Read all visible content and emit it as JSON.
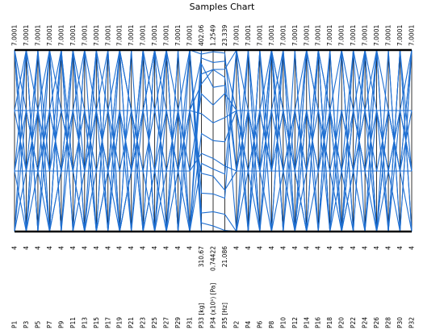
{
  "chart_data": {
    "type": "parallel-coordinates",
    "title": "Samples Chart",
    "axes": [
      {
        "label": "P1",
        "max": "7.0001",
        "min": "4"
      },
      {
        "label": "P3",
        "max": "7.0001",
        "min": "4"
      },
      {
        "label": "P5",
        "max": "7.0001",
        "min": "4"
      },
      {
        "label": "P7",
        "max": "7.0001",
        "min": "4"
      },
      {
        "label": "P9",
        "max": "7.0001",
        "min": "4"
      },
      {
        "label": "P11",
        "max": "7.0001",
        "min": "4"
      },
      {
        "label": "P13",
        "max": "7.0001",
        "min": "4"
      },
      {
        "label": "P15",
        "max": "7.0001",
        "min": "4"
      },
      {
        "label": "P17",
        "max": "7.0001",
        "min": "4"
      },
      {
        "label": "P19",
        "max": "7.0001",
        "min": "4"
      },
      {
        "label": "P21",
        "max": "7.0001",
        "min": "4"
      },
      {
        "label": "P23",
        "max": "7.0001",
        "min": "4"
      },
      {
        "label": "P25",
        "max": "7.0001",
        "min": "4"
      },
      {
        "label": "P27",
        "max": "7.0001",
        "min": "4"
      },
      {
        "label": "P29",
        "max": "7.0001",
        "min": "4"
      },
      {
        "label": "P31",
        "max": "7.0001",
        "min": "4"
      },
      {
        "label": "P33 [kg]",
        "max": "402.06",
        "min": "310.67"
      },
      {
        "label": "P34 (x10¹) [Pa]",
        "max": "1.2549",
        "min": "0.74422"
      },
      {
        "label": "P35 [Hz]",
        "max": "23.339",
        "min": "21.086"
      },
      {
        "label": "P2",
        "max": "7.0001",
        "min": "4"
      },
      {
        "label": "P4",
        "max": "7.0001",
        "min": "4"
      },
      {
        "label": "P6",
        "max": "7.0001",
        "min": "4"
      },
      {
        "label": "P8",
        "max": "7.0001",
        "min": "4"
      },
      {
        "label": "P10",
        "max": "7.0001",
        "min": "4"
      },
      {
        "label": "P12",
        "max": "7.0001",
        "min": "4"
      },
      {
        "label": "P14",
        "max": "7.0001",
        "min": "4"
      },
      {
        "label": "P16",
        "max": "7.0001",
        "min": "4"
      },
      {
        "label": "P18",
        "max": "7.0001",
        "min": "4"
      },
      {
        "label": "P20",
        "max": "7.0001",
        "min": "4"
      },
      {
        "label": "P22",
        "max": "7.0001",
        "min": "4"
      },
      {
        "label": "P24",
        "max": "7.0001",
        "min": "4"
      },
      {
        "label": "P26",
        "max": "7.0001",
        "min": "4"
      },
      {
        "label": "P28",
        "max": "7.0001",
        "min": "4"
      },
      {
        "label": "P30",
        "max": "7.0001",
        "min": "4"
      },
      {
        "label": "P32",
        "max": "7.0001",
        "min": "4"
      }
    ],
    "samples": [
      [
        7,
        4,
        7,
        4,
        7,
        4,
        7,
        4,
        7,
        4,
        7,
        4,
        7,
        4,
        7,
        4,
        402.06,
        1.2549,
        23.339,
        7,
        4,
        7,
        4,
        7,
        4,
        7,
        4,
        7,
        4,
        7,
        4,
        7,
        4,
        7,
        4
      ],
      [
        4,
        7,
        4,
        7,
        4,
        7,
        4,
        7,
        4,
        7,
        4,
        7,
        4,
        7,
        4,
        7,
        310.67,
        0.74422,
        21.086,
        4,
        7,
        4,
        7,
        4,
        7,
        4,
        7,
        4,
        7,
        4,
        7,
        4,
        7,
        4,
        7
      ],
      [
        6,
        5,
        6,
        5,
        6,
        5,
        6,
        5,
        6,
        5,
        6,
        5,
        6,
        5,
        6,
        5,
        380,
        1.1,
        22.8,
        6,
        5,
        6,
        5,
        6,
        5,
        6,
        5,
        6,
        5,
        6,
        5,
        6,
        5,
        6,
        5
      ],
      [
        5,
        6,
        5,
        6,
        5,
        6,
        5,
        6,
        5,
        6,
        5,
        6,
        5,
        6,
        5,
        6,
        340,
        0.9,
        21.6,
        5,
        6,
        5,
        6,
        5,
        6,
        5,
        6,
        5,
        6,
        5,
        6,
        5,
        6,
        5,
        6
      ],
      [
        7,
        7,
        4,
        4,
        7,
        7,
        4,
        4,
        7,
        7,
        4,
        4,
        7,
        7,
        4,
        4,
        390,
        1.2,
        23.1,
        7,
        7,
        4,
        4,
        7,
        7,
        4,
        4,
        7,
        7,
        4,
        4,
        7,
        7,
        4,
        4
      ],
      [
        4,
        4,
        7,
        7,
        4,
        4,
        7,
        7,
        4,
        4,
        7,
        7,
        4,
        4,
        7,
        7,
        320,
        0.8,
        21.3,
        4,
        4,
        7,
        7,
        4,
        4,
        7,
        7,
        4,
        4,
        7,
        7,
        4,
        4,
        7,
        7
      ],
      [
        6,
        6,
        6,
        6,
        6,
        6,
        6,
        6,
        6,
        6,
        6,
        6,
        6,
        6,
        6,
        6,
        370,
        1.05,
        22.5,
        6,
        6,
        6,
        6,
        6,
        6,
        6,
        6,
        6,
        6,
        6,
        6,
        6,
        6,
        6,
        6
      ],
      [
        5,
        5,
        5,
        5,
        5,
        5,
        5,
        5,
        5,
        5,
        5,
        5,
        5,
        5,
        5,
        5,
        350,
        0.95,
        21.9,
        5,
        5,
        5,
        5,
        5,
        5,
        5,
        5,
        5,
        5,
        5,
        5,
        5,
        5,
        5,
        5
      ],
      [
        7,
        6,
        5,
        4,
        5,
        6,
        7,
        6,
        5,
        4,
        5,
        6,
        7,
        6,
        5,
        4,
        395,
        1.15,
        22.9,
        4,
        5,
        6,
        7,
        6,
        5,
        4,
        5,
        6,
        7,
        6,
        5,
        4,
        5,
        6,
        7
      ],
      [
        4,
        5,
        6,
        7,
        6,
        5,
        4,
        5,
        6,
        7,
        6,
        5,
        4,
        5,
        6,
        7,
        330,
        0.85,
        21.5,
        7,
        6,
        5,
        4,
        5,
        6,
        7,
        6,
        5,
        4,
        5,
        6,
        7,
        6,
        5,
        4
      ],
      [
        7,
        5,
        7,
        5,
        7,
        5,
        4,
        6,
        4,
        6,
        4,
        6,
        7,
        7,
        7,
        7,
        400,
        1.25,
        23.3,
        5,
        7,
        5,
        7,
        5,
        4,
        6,
        4,
        6,
        4,
        6,
        7,
        7,
        7,
        7,
        4
      ],
      [
        5,
        4,
        6,
        4,
        7,
        5,
        6,
        4,
        5,
        7,
        6,
        4,
        5,
        4,
        6,
        4,
        360,
        1.0,
        22.2,
        6,
        4,
        7,
        5,
        6,
        4,
        5,
        7,
        6,
        4,
        5,
        4,
        6,
        4,
        7,
        5
      ],
      [
        6,
        7,
        4,
        6,
        5,
        7,
        5,
        7,
        6,
        4,
        5,
        7,
        6,
        7,
        4,
        6,
        385,
        1.2,
        23.0,
        5,
        6,
        4,
        6,
        7,
        5,
        7,
        6,
        4,
        5,
        7,
        6,
        4,
        6,
        5,
        7
      ],
      [
        4,
        6,
        5,
        7,
        4,
        6,
        5,
        7,
        4,
        6,
        5,
        7,
        4,
        6,
        5,
        7,
        315,
        0.76,
        21.1,
        4,
        6,
        5,
        7,
        4,
        6,
        5,
        7,
        4,
        6,
        5,
        7,
        4,
        6,
        5,
        7
      ],
      [
        7,
        4,
        5,
        6,
        7,
        4,
        5,
        6,
        7,
        4,
        5,
        6,
        7,
        4,
        5,
        6,
        398,
        1.22,
        23.2,
        6,
        5,
        4,
        7,
        6,
        5,
        4,
        7,
        6,
        5,
        4,
        7,
        6,
        5,
        4,
        7
      ],
      [
        5,
        7,
        6,
        4,
        5,
        7,
        6,
        4,
        5,
        7,
        6,
        4,
        5,
        7,
        6,
        4,
        345,
        0.92,
        21.8,
        7,
        4,
        6,
        5,
        7,
        4,
        6,
        5,
        7,
        4,
        6,
        5,
        7,
        4,
        6,
        5
      ]
    ],
    "line_color": "#1f6fd1",
    "axis_color": "#000000",
    "grid": false,
    "legend": "none"
  }
}
